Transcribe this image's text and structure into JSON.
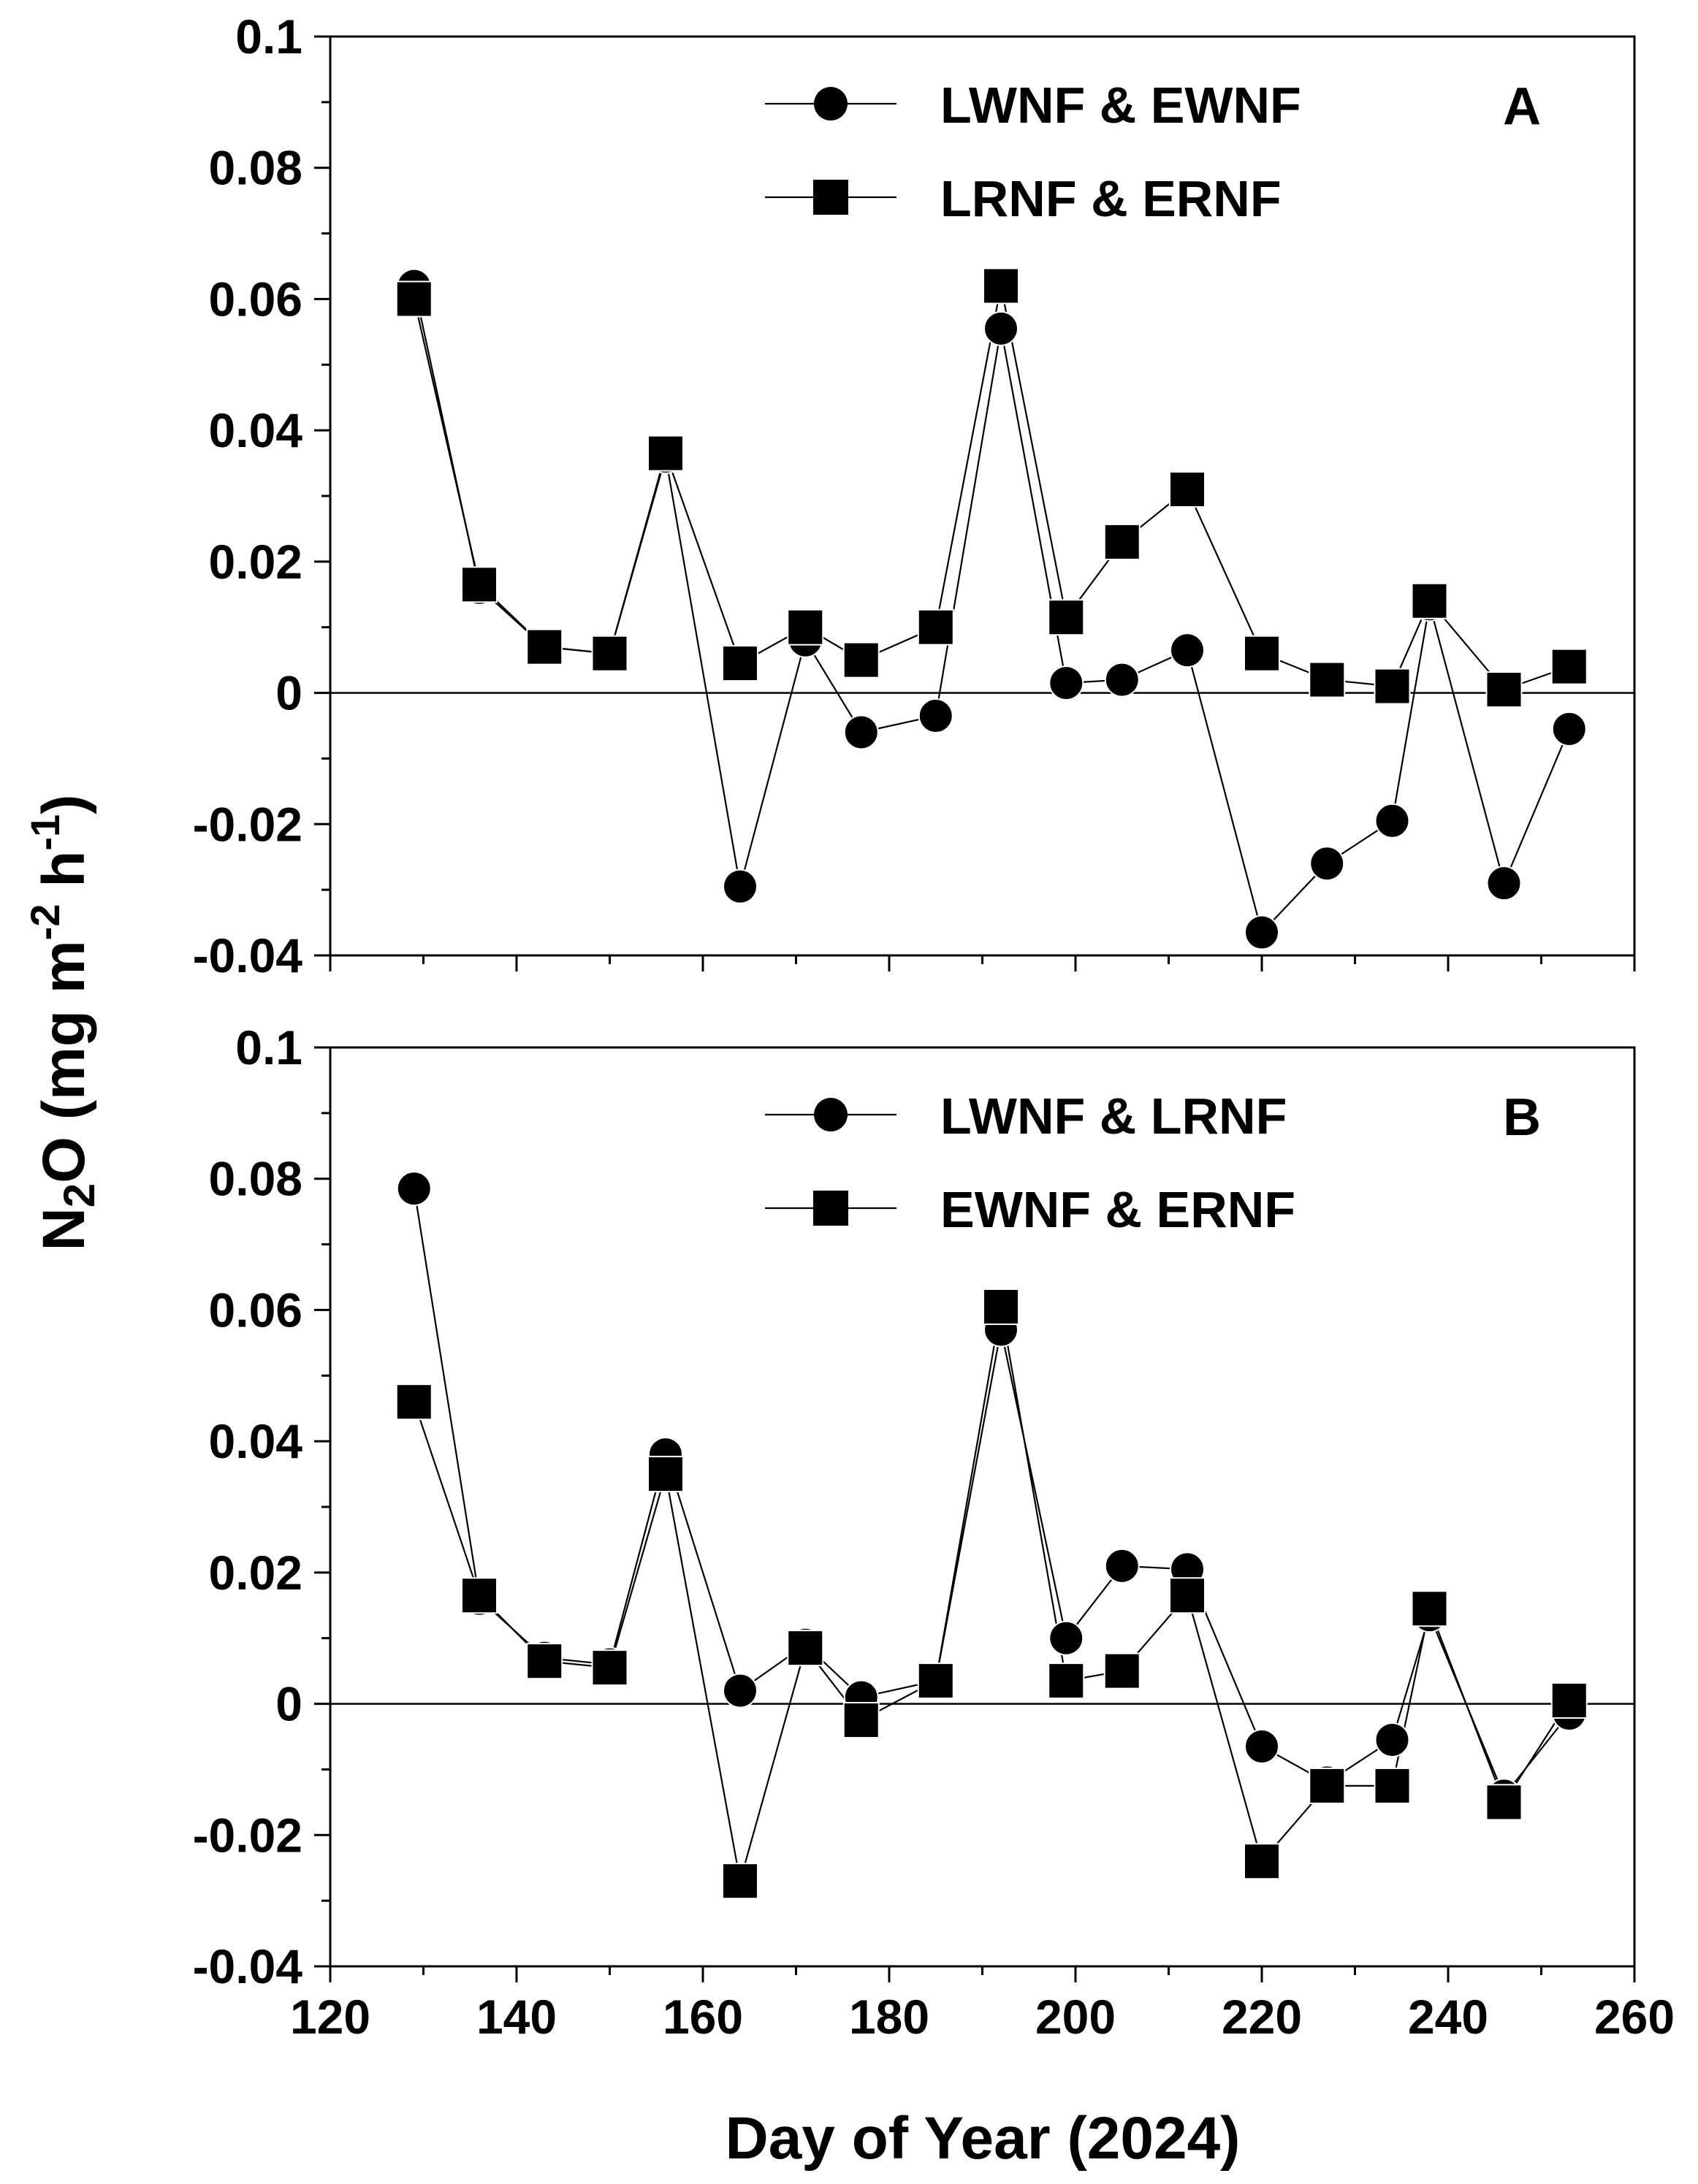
{
  "chart_data": [
    {
      "type": "line",
      "panel_label": "A",
      "xlim": [
        120,
        260
      ],
      "ylim": [
        -0.04,
        0.1
      ],
      "zero_line": true,
      "x_ticks": [
        120,
        140,
        160,
        180,
        200,
        220,
        240,
        260
      ],
      "y_ticks": [
        "0.1",
        "0.08",
        "0.06",
        "0.04",
        "0.02",
        "0",
        "-0.02",
        "-0.04"
      ],
      "legend_position": "top-right",
      "series": [
        {
          "name": "LWNF & EWNF",
          "marker": "circle",
          "x": [
            129,
            136,
            143,
            150,
            156,
            164,
            171,
            177,
            185,
            192,
            199,
            205,
            212,
            220,
            227,
            234,
            238,
            246,
            253
          ],
          "y": [
            0.062,
            0.016,
            0.007,
            0.006,
            0.036,
            -0.0295,
            0.008,
            -0.006,
            -0.0035,
            0.0555,
            0.0015,
            0.002,
            0.0065,
            -0.0365,
            -0.026,
            -0.0195,
            0.0135,
            -0.029,
            -0.0055
          ]
        },
        {
          "name": "LRNF & ERNF",
          "marker": "square",
          "x": [
            129,
            136,
            143,
            150,
            156,
            164,
            171,
            177,
            185,
            192,
            199,
            205,
            212,
            220,
            227,
            234,
            238,
            246,
            253
          ],
          "y": [
            0.06,
            0.0165,
            0.007,
            0.006,
            0.0365,
            0.0045,
            0.01,
            0.005,
            0.01,
            0.062,
            0.0115,
            0.023,
            0.031,
            0.006,
            0.002,
            0.001,
            0.014,
            0.0005,
            0.004
          ]
        }
      ]
    },
    {
      "type": "line",
      "panel_label": "B",
      "xlim": [
        120,
        260
      ],
      "ylim": [
        -0.04,
        0.1
      ],
      "zero_line": true,
      "x_ticks": [
        120,
        140,
        160,
        180,
        200,
        220,
        240,
        260
      ],
      "y_ticks": [
        "0.1",
        "0.08",
        "0.06",
        "0.04",
        "0.02",
        "0",
        "-0.02",
        "-0.04"
      ],
      "legend_position": "top-right",
      "series": [
        {
          "name": "LWNF & LRNF",
          "marker": "circle",
          "x": [
            129,
            136,
            143,
            150,
            156,
            164,
            171,
            177,
            185,
            192,
            199,
            205,
            212,
            220,
            227,
            234,
            238,
            246,
            253
          ],
          "y": [
            0.0785,
            0.016,
            0.007,
            0.006,
            0.038,
            0.002,
            0.009,
            0.001,
            0.0035,
            0.057,
            0.01,
            0.021,
            0.0205,
            -0.0065,
            -0.012,
            -0.0055,
            0.0135,
            -0.014,
            -0.0015
          ]
        },
        {
          "name": "EWNF & ERNF",
          "marker": "square",
          "x": [
            129,
            136,
            143,
            150,
            156,
            164,
            171,
            177,
            185,
            192,
            199,
            205,
            212,
            220,
            227,
            234,
            238,
            246,
            253
          ],
          "y": [
            0.046,
            0.0165,
            0.0065,
            0.0055,
            0.035,
            -0.027,
            0.0085,
            -0.0025,
            0.0035,
            0.0605,
            0.0035,
            0.005,
            0.0165,
            -0.024,
            -0.0125,
            -0.0125,
            0.0145,
            -0.015,
            0.0005
          ]
        }
      ]
    }
  ],
  "axes": {
    "x_label": "Day of Year (2024)",
    "y_label_main": "N",
    "y_label_sub": "2",
    "y_label_rest": "O (mg m",
    "y_label_exp1": "-2",
    "y_label_mid": " h",
    "y_label_exp2": "-1",
    "y_label_end": ")"
  }
}
